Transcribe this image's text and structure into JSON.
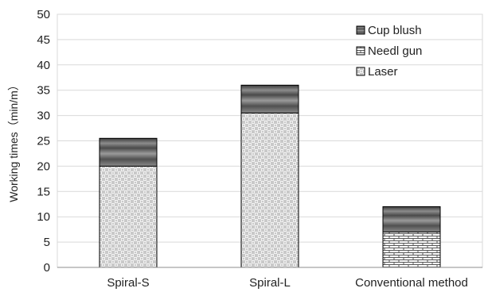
{
  "chart_data": {
    "type": "bar",
    "stacked": true,
    "categories": [
      "Spiral-S",
      "Spiral-L",
      "Conventional method"
    ],
    "series": [
      {
        "name": "Laser",
        "values": [
          20,
          30.5,
          0
        ]
      },
      {
        "name": "Needl gun",
        "values": [
          0,
          0,
          7
        ]
      },
      {
        "name": "Cup blush",
        "values": [
          5.5,
          5.5,
          5
        ]
      }
    ],
    "ylabel": "Working times（min/m）",
    "xlabel": "",
    "ylim": [
      0,
      50
    ],
    "yticks": [
      0,
      5,
      10,
      15,
      20,
      25,
      30,
      35,
      40,
      45,
      50
    ],
    "grid": true,
    "legend_position": "top-right",
    "legend_order": [
      "Cup blush",
      "Needl gun",
      "Laser"
    ]
  }
}
